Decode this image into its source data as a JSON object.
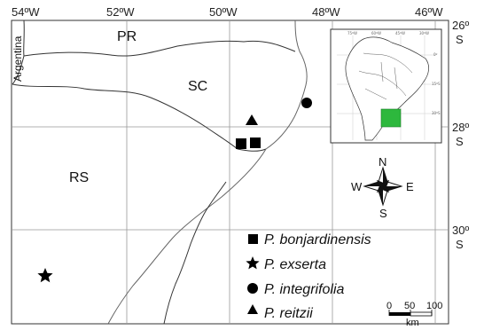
{
  "longitude_labels": [
    "54ºW",
    "52ºW",
    "50ºW",
    "48ºW",
    "46ºW"
  ],
  "latitude_labels": [
    {
      "deg": "26º",
      "hemi": "S"
    },
    {
      "deg": "28º",
      "hemi": "S"
    },
    {
      "deg": "30º",
      "hemi": "S"
    }
  ],
  "regions": {
    "pr": "PR",
    "sc": "SC",
    "rs": "RS",
    "argentina": "Argentina"
  },
  "legend": [
    {
      "name": "P. bonjardinensis",
      "symbol": "square"
    },
    {
      "name": "P. exserta",
      "symbol": "star"
    },
    {
      "name": "P. integrifolia",
      "symbol": "circle"
    },
    {
      "name": "P. reitzii",
      "symbol": "triangle"
    }
  ],
  "occurrences": {
    "bonjardinensis": [
      {
        "lon": -49.8,
        "lat": -28.1
      },
      {
        "lon": -49.55,
        "lat": -28.1
      }
    ],
    "exserta": [
      {
        "lon": -53.55,
        "lat": -30.87
      }
    ],
    "integrifolia": [
      {
        "lon": -48.55,
        "lat": -27.4
      }
    ],
    "reitzii": [
      {
        "lon": -49.6,
        "lat": -27.7
      }
    ]
  },
  "compass": {
    "n": "N",
    "s": "S",
    "e": "E",
    "w": "W"
  },
  "scale_bar": {
    "ticks": [
      "0",
      "50",
      "100"
    ],
    "unit": "km"
  },
  "inset": {
    "lon_ticks": [
      "75ºW",
      "60ºW",
      "45ºW",
      "30ºW"
    ],
    "lat_ticks": [
      "0º",
      "15ºS",
      "30ºS"
    ],
    "highlight_color": "#2db83d"
  },
  "colors": {
    "land": "#ffffff",
    "border": "#333333",
    "grid": "#999999",
    "coast": "#666666"
  }
}
